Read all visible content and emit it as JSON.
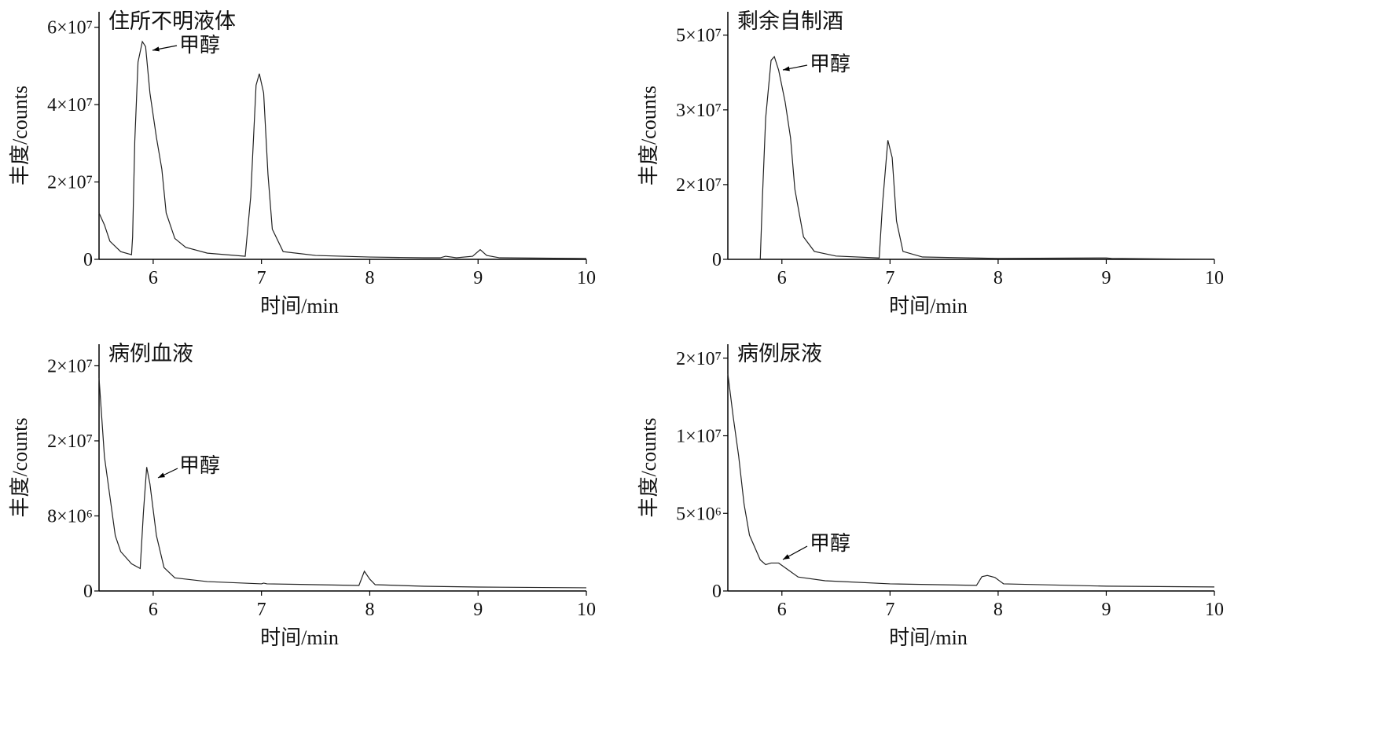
{
  "chart_data": [
    {
      "type": "line",
      "title": "住所不明液体",
      "annotation": "甲醇",
      "xlabel": "时间/min",
      "ylabel": "丰度/counts",
      "color": "#222222",
      "xlim": [
        5.5,
        10
      ],
      "xticks": [
        6,
        7,
        8,
        9,
        10
      ],
      "ylim": [
        0,
        64000000
      ],
      "yticks": [
        0,
        {
          "value": 20000000,
          "label": "2×10⁷"
        },
        {
          "value": 40000000,
          "label": "4×10⁷"
        },
        {
          "value": 60000000,
          "label": "6×10⁷"
        }
      ],
      "x": [
        5.5,
        5.55,
        5.6,
        5.7,
        5.8,
        5.81,
        5.83,
        5.86,
        5.9,
        5.93,
        5.97,
        6.03,
        6.08,
        6.12,
        6.2,
        6.3,
        6.5,
        6.85,
        6.9,
        6.95,
        6.98,
        7.02,
        7.06,
        7.1,
        7.2,
        7.5,
        8,
        8.5,
        8.65,
        8.7,
        8.8,
        8.95,
        9.02,
        9.08,
        9.2,
        10
      ],
      "values": [
        12000000,
        8900000,
        4700000,
        2000000,
        1200000,
        5800000,
        30500000,
        51000000,
        56300000,
        55000000,
        43000000,
        31500000,
        23300000,
        12000000,
        5400000,
        3100000,
        1600000,
        800000,
        16000000,
        45000000,
        48000000,
        43000000,
        22000000,
        7800000,
        2000000,
        1000000,
        600000,
        400000,
        400000,
        800000,
        400000,
        800000,
        2500000,
        1000000,
        400000,
        200000
      ]
    },
    {
      "type": "line",
      "title": "剩余自制酒",
      "annotation": "甲醇",
      "xlabel": "时间/min",
      "ylabel": "丰度/counts",
      "color": "#222222",
      "xlim": [
        5.5,
        10
      ],
      "xticks": [
        6,
        7,
        8,
        9,
        10
      ],
      "ylim": [
        0,
        53000000
      ],
      "yticks": [
        0,
        {
          "value": 16000000,
          "label": "2×10⁷"
        },
        {
          "value": 32000000,
          "label": "3×10⁷"
        },
        {
          "value": 48000000,
          "label": "5×10⁷"
        }
      ],
      "x": [
        5.5,
        5.8,
        5.82,
        5.85,
        5.9,
        5.93,
        5.97,
        6.03,
        6.08,
        6.12,
        6.2,
        6.3,
        6.5,
        6.9,
        6.93,
        6.98,
        7.02,
        7.06,
        7.12,
        7.3,
        8,
        9,
        9.05,
        10
      ],
      "values": [
        0,
        0,
        13300000,
        30300000,
        42600000,
        43400000,
        40500000,
        33700000,
        26000000,
        15000000,
        4800000,
        1700000,
        700000,
        300000,
        11600000,
        25500000,
        21800000,
        8200000,
        1700000,
        500000,
        200000,
        300000,
        200000,
        0
      ]
    },
    {
      "type": "line",
      "title": "病例血液",
      "annotation": "甲醇",
      "xlabel": "时间/min",
      "ylabel": "丰度/counts",
      "color": "#222222",
      "xlim": [
        5.5,
        10
      ],
      "xticks": [
        6,
        7,
        8,
        9,
        10
      ],
      "ylim": [
        0,
        26300000
      ],
      "yticks": [
        0,
        {
          "value": 8000000,
          "label": "8×10⁶"
        },
        {
          "value": 16000000,
          "label": "2×10⁷"
        },
        {
          "value": 24000000,
          "label": "2×10⁷"
        }
      ],
      "x": [
        5.5,
        5.55,
        5.6,
        5.65,
        5.7,
        5.8,
        5.88,
        5.91,
        5.94,
        5.97,
        6.03,
        6.1,
        6.2,
        6.5,
        7,
        7.02,
        7.05,
        7.5,
        7.9,
        7.95,
        8,
        8.05,
        8.5,
        9,
        10
      ],
      "values": [
        22700000,
        14300000,
        10100000,
        5900000,
        4200000,
        2900000,
        2400000,
        8400000,
        13200000,
        11400000,
        5900000,
        2500000,
        1400000,
        1000000,
        760000,
        840000,
        760000,
        670000,
        590000,
        2100000,
        1260000,
        670000,
        500000,
        420000,
        340000
      ]
    },
    {
      "type": "line",
      "title": "病例尿液",
      "annotation": "甲醇",
      "xlabel": "时间/min",
      "ylabel": "丰度/counts",
      "color": "#222222",
      "xlim": [
        5.5,
        10
      ],
      "xticks": [
        6,
        7,
        8,
        9,
        10
      ],
      "ylim": [
        0,
        15900000
      ],
      "yticks": [
        0,
        {
          "value": 5000000,
          "label": "5×10⁶"
        },
        {
          "value": 10000000,
          "label": "1×10⁷"
        },
        {
          "value": 15000000,
          "label": "2×10⁷"
        }
      ],
      "x": [
        5.5,
        5.55,
        5.6,
        5.65,
        5.7,
        5.8,
        5.85,
        5.9,
        5.97,
        6.05,
        6.15,
        6.4,
        7,
        7.8,
        7.85,
        7.9,
        7.97,
        8.05,
        9,
        10
      ],
      "values": [
        14000000,
        11200000,
        8700000,
        5600000,
        3600000,
        2000000,
        1700000,
        1800000,
        1800000,
        1400000,
        900000,
        660000,
        460000,
        360000,
        920000,
        1000000,
        870000,
        460000,
        310000,
        260000
      ]
    }
  ]
}
